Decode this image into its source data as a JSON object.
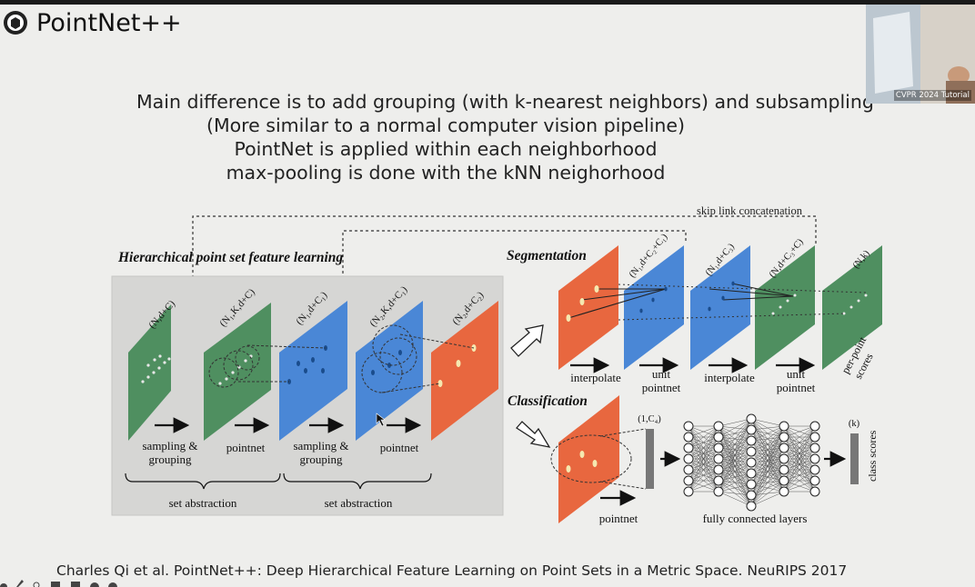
{
  "slide": {
    "title": "PointNet++",
    "bullets": [
      "Main difference is to add grouping (with k-nearest neighbors) and subsampling",
      "(More similar to a normal computer vision pipeline)",
      "PointNet is applied within each neighborhood",
      "max-pooling is done with the kNN neighorhood"
    ],
    "citation": "Charles Qi et al. PointNet++: Deep Hierarchical Feature Learning on Point Sets in a Metric Space. NeuRIPS 2017"
  },
  "webcam": {
    "label": "CVPR 2024 Tutorial"
  },
  "diagram": {
    "skip_link_label": "skip link concatenation",
    "hierarchical_title": "Hierarchical point set feature learning",
    "segmentation_title": "Segmentation",
    "classification_title": "Classification",
    "planes": {
      "p1": "(N,d+C)",
      "p2": "(N₁,K,d+C)",
      "p3": "(N₁,d+C₁)",
      "p4": "(N₂,K,d+C₁)",
      "p5": "(N₂,d+C₂)",
      "s1": "(N₁,d+C₂+C₁)",
      "s2": "(N₁,d+C₃)",
      "s3": "(N,d+C₃+C)",
      "s4": "(N,k)"
    },
    "steps": {
      "sampling_grouping_1": [
        "sampling &",
        "grouping"
      ],
      "pointnet_1": "pointnet",
      "sampling_grouping_2": [
        "sampling &",
        "grouping"
      ],
      "pointnet_2": "pointnet",
      "set_abstraction_1": "set abstraction",
      "set_abstraction_2": "set abstraction",
      "interpolate_1": "interpolate",
      "unit_pointnet_1": [
        "unit",
        "pointnet"
      ],
      "interpolate_2": "interpolate",
      "unit_pointnet_2": [
        "unit",
        "pointnet"
      ],
      "per_point_scores": [
        "per-point",
        "scores"
      ],
      "cls_pointnet": "pointnet",
      "cls_vector": "(1,C₄)",
      "fully_connected": "fully connected layers",
      "cls_k": "(k)",
      "class_scores": "class scores"
    },
    "colors": {
      "green": "#4f8f60",
      "blue": "#4a87d6",
      "orange": "#e8673f",
      "panel": "#d6d6d4"
    }
  }
}
